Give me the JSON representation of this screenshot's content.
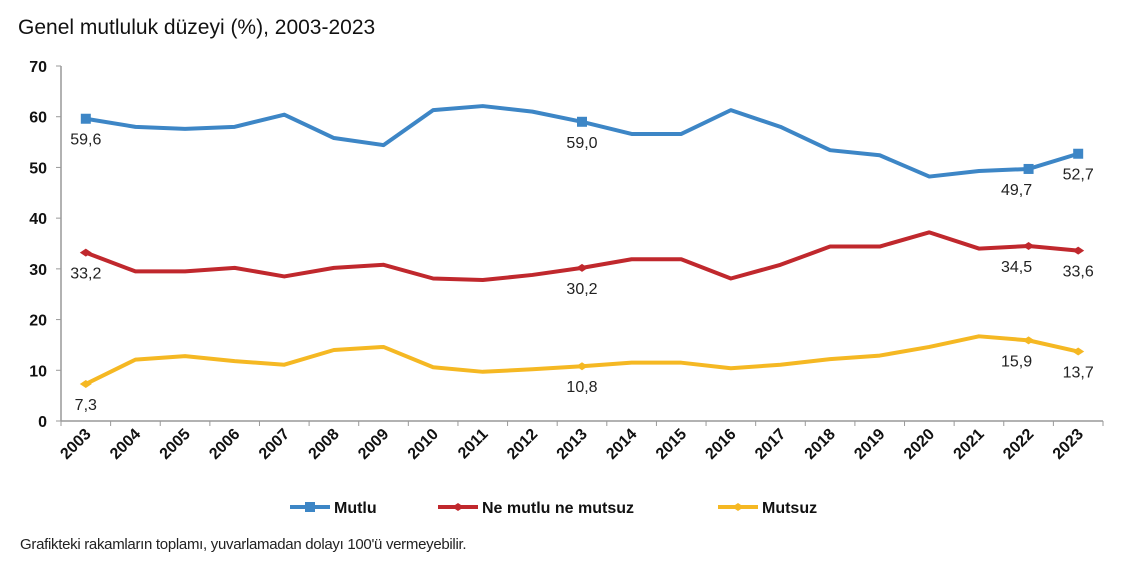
{
  "chart_data": {
    "type": "line",
    "title": "Genel mutluluk düzeyi (%), 2003-2023",
    "note": "Grafikteki rakamların toplamı, yuvarlamadan dolayı 100'ü vermeyebilir.",
    "categories": [
      "2003",
      "2004",
      "2005",
      "2006",
      "2007",
      "2008",
      "2009",
      "2010",
      "2011",
      "2012",
      "2013",
      "2014",
      "2015",
      "2016",
      "2017",
      "2018",
      "2019",
      "2020",
      "2021",
      "2022",
      "2023"
    ],
    "ylim": [
      0,
      70
    ],
    "yticks": [
      "0",
      "10",
      "20",
      "30",
      "40",
      "50",
      "60",
      "70"
    ],
    "grid": false,
    "legend": "bottom",
    "series": [
      {
        "name": "Mutlu",
        "color": "#3d86c6",
        "values": [
          59.6,
          58.0,
          57.6,
          58.0,
          60.4,
          55.8,
          54.4,
          61.3,
          62.1,
          61.0,
          59.0,
          56.6,
          56.6,
          61.3,
          58.0,
          53.4,
          52.4,
          48.2,
          49.3,
          49.7,
          52.7
        ],
        "labels": {
          "0": "59,6",
          "10": "59,0",
          "19": "49,7",
          "20": "52,7"
        }
      },
      {
        "name": "Ne mutlu ne mutsuz",
        "color": "#c0282d",
        "values": [
          33.2,
          29.5,
          29.5,
          30.2,
          28.5,
          30.2,
          30.8,
          28.1,
          27.8,
          28.8,
          30.2,
          31.9,
          31.9,
          28.1,
          30.8,
          34.4,
          34.4,
          37.2,
          34.0,
          34.5,
          33.6
        ],
        "labels": {
          "0": "33,2",
          "10": "30,2",
          "19": "34,5",
          "20": "33,6"
        }
      },
      {
        "name": "Mutsuz",
        "color": "#f5b823",
        "values": [
          7.3,
          12.1,
          12.8,
          11.8,
          11.1,
          14.0,
          14.6,
          10.6,
          9.7,
          10.2,
          10.8,
          11.5,
          11.5,
          10.4,
          11.1,
          12.2,
          12.9,
          14.6,
          16.7,
          15.9,
          13.7
        ],
        "labels": {
          "0": "7,3",
          "10": "10,8",
          "19": "15,9",
          "20": "13,7"
        }
      }
    ]
  }
}
